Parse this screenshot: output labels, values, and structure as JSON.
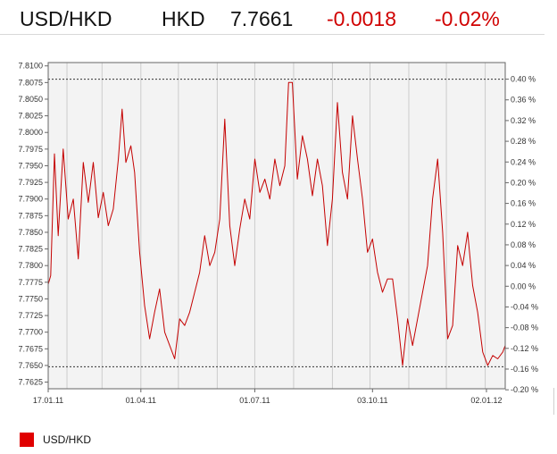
{
  "header": {
    "pair": "USD/HKD",
    "currency": "HKD",
    "last": "7.7661",
    "change": "-0.0018",
    "change_pct": "-0.02%",
    "change_color": "#d00000"
  },
  "legend": {
    "label": "USD/HKD",
    "color": "#e00000"
  },
  "chart_data": {
    "type": "line",
    "title": "",
    "xlabel": "",
    "ylabel": "",
    "grid": true,
    "legend_position": "bottom-left",
    "background": "#f3f3f3",
    "line_color": "#c40000",
    "x_start": "2011-01-17",
    "x_end": "2012-01-17",
    "x_ticks": [
      {
        "label": "17.01.11",
        "date": "2011-01-17"
      },
      {
        "label": "01.04.11",
        "date": "2011-04-01"
      },
      {
        "label": "01.07.11",
        "date": "2011-07-01"
      },
      {
        "label": "03.10.11",
        "date": "2011-10-03"
      },
      {
        "label": "02.01.12",
        "date": "2012-01-02"
      }
    ],
    "ylim": [
      7.7615,
      7.8105
    ],
    "y_ticks": [
      "7.8100",
      "7.8075",
      "7.8050",
      "7.8025",
      "7.8000",
      "7.7975",
      "7.7950",
      "7.7925",
      "7.7900",
      "7.7875",
      "7.7850",
      "7.7825",
      "7.7800",
      "7.7775",
      "7.7750",
      "7.7725",
      "7.7700",
      "7.7675",
      "7.7650",
      "7.7625"
    ],
    "y2_ticks": [
      "0.40 %",
      "0.36 %",
      "0.32 %",
      "0.28 %",
      "0.24 %",
      "0.20 %",
      "0.16 %",
      "0.12 %",
      "0.08 %",
      "0.04 %",
      "0.00 %",
      "-0.04 %",
      "-0.08 %",
      "-0.12 %",
      "-0.16 %",
      "-0.20 %"
    ],
    "y2_base": 7.7769,
    "reference_lines": [
      7.808,
      7.7648
    ],
    "series": [
      {
        "values": [
          [
            "2011-01-17",
            7.7772
          ],
          [
            "2011-01-19",
            7.7785
          ],
          [
            "2011-01-22",
            7.7968
          ],
          [
            "2011-01-25",
            7.7845
          ],
          [
            "2011-01-29",
            7.7975
          ],
          [
            "2011-02-02",
            7.787
          ],
          [
            "2011-02-06",
            7.79
          ],
          [
            "2011-02-10",
            7.781
          ],
          [
            "2011-02-14",
            7.7955
          ],
          [
            "2011-02-18",
            7.7895
          ],
          [
            "2011-02-22",
            7.7955
          ],
          [
            "2011-02-26",
            7.7872
          ],
          [
            "2011-03-02",
            7.791
          ],
          [
            "2011-03-06",
            7.786
          ],
          [
            "2011-03-10",
            7.7885
          ],
          [
            "2011-03-14",
            7.796
          ],
          [
            "2011-03-17",
            7.8035
          ],
          [
            "2011-03-20",
            7.7955
          ],
          [
            "2011-03-24",
            7.798
          ],
          [
            "2011-03-27",
            7.794
          ],
          [
            "2011-03-31",
            7.782
          ],
          [
            "2011-04-04",
            7.774
          ],
          [
            "2011-04-08",
            7.769
          ],
          [
            "2011-04-12",
            7.773
          ],
          [
            "2011-04-16",
            7.7765
          ],
          [
            "2011-04-20",
            7.77
          ],
          [
            "2011-04-24",
            7.768
          ],
          [
            "2011-04-28",
            7.766
          ],
          [
            "2011-05-02",
            7.772
          ],
          [
            "2011-05-06",
            7.771
          ],
          [
            "2011-05-10",
            7.773
          ],
          [
            "2011-05-14",
            7.776
          ],
          [
            "2011-05-18",
            7.779
          ],
          [
            "2011-05-22",
            7.7845
          ],
          [
            "2011-05-26",
            7.78
          ],
          [
            "2011-05-30",
            7.782
          ],
          [
            "2011-06-03",
            7.787
          ],
          [
            "2011-06-07",
            7.802
          ],
          [
            "2011-06-11",
            7.786
          ],
          [
            "2011-06-15",
            7.78
          ],
          [
            "2011-06-19",
            7.7855
          ],
          [
            "2011-06-23",
            7.79
          ],
          [
            "2011-06-27",
            7.787
          ],
          [
            "2011-07-01",
            7.796
          ],
          [
            "2011-07-05",
            7.791
          ],
          [
            "2011-07-09",
            7.793
          ],
          [
            "2011-07-13",
            7.79
          ],
          [
            "2011-07-17",
            7.796
          ],
          [
            "2011-07-21",
            7.792
          ],
          [
            "2011-07-25",
            7.795
          ],
          [
            "2011-07-28",
            7.8075
          ],
          [
            "2011-07-31",
            7.8075
          ],
          [
            "2011-08-04",
            7.793
          ],
          [
            "2011-08-08",
            7.7995
          ],
          [
            "2011-08-12",
            7.796
          ],
          [
            "2011-08-16",
            7.7905
          ],
          [
            "2011-08-20",
            7.796
          ],
          [
            "2011-08-24",
            7.792
          ],
          [
            "2011-08-28",
            7.783
          ],
          [
            "2011-09-01",
            7.79
          ],
          [
            "2011-09-05",
            7.8045
          ],
          [
            "2011-09-09",
            7.794
          ],
          [
            "2011-09-13",
            7.79
          ],
          [
            "2011-09-17",
            7.8025
          ],
          [
            "2011-09-21",
            7.796
          ],
          [
            "2011-09-25",
            7.79
          ],
          [
            "2011-09-29",
            7.782
          ],
          [
            "2011-10-03",
            7.784
          ],
          [
            "2011-10-07",
            7.779
          ],
          [
            "2011-10-11",
            7.776
          ],
          [
            "2011-10-15",
            7.778
          ],
          [
            "2011-10-19",
            7.778
          ],
          [
            "2011-10-23",
            7.772
          ],
          [
            "2011-10-27",
            7.765
          ],
          [
            "2011-10-31",
            7.772
          ],
          [
            "2011-11-04",
            7.768
          ],
          [
            "2011-11-08",
            7.772
          ],
          [
            "2011-11-12",
            7.776
          ],
          [
            "2011-11-16",
            7.78
          ],
          [
            "2011-11-20",
            7.79
          ],
          [
            "2011-11-24",
            7.796
          ],
          [
            "2011-11-28",
            7.785
          ],
          [
            "2011-12-02",
            7.769
          ],
          [
            "2011-12-06",
            7.771
          ],
          [
            "2011-12-10",
            7.783
          ],
          [
            "2011-12-14",
            7.78
          ],
          [
            "2011-12-18",
            7.785
          ],
          [
            "2011-12-22",
            7.777
          ],
          [
            "2011-12-26",
            7.773
          ],
          [
            "2011-12-30",
            7.767
          ],
          [
            "2012-01-03",
            7.765
          ],
          [
            "2012-01-07",
            7.7665
          ],
          [
            "2012-01-11",
            7.766
          ],
          [
            "2012-01-15",
            7.767
          ],
          [
            "2012-01-17",
            7.768
          ]
        ]
      }
    ]
  }
}
